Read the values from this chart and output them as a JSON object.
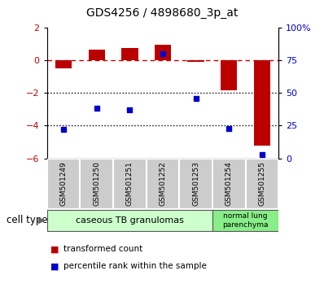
{
  "title": "GDS4256 / 4898680_3p_at",
  "samples": [
    "GSM501249",
    "GSM501250",
    "GSM501251",
    "GSM501252",
    "GSM501253",
    "GSM501254",
    "GSM501255"
  ],
  "red_values": [
    -0.52,
    0.62,
    0.72,
    0.93,
    -0.08,
    -1.82,
    -5.22
  ],
  "blue_values": [
    22,
    38,
    37,
    80,
    46,
    23,
    3
  ],
  "ylim_left": [
    -6,
    2
  ],
  "ylim_right": [
    0,
    100
  ],
  "yticks_left": [
    2,
    0,
    -2,
    -4,
    -6
  ],
  "yticks_right": [
    100,
    75,
    50,
    25,
    0
  ],
  "ytick_labels_right": [
    "100%",
    "75",
    "50",
    "25",
    "0"
  ],
  "red_color": "#bb0000",
  "blue_color": "#0000cc",
  "hline_color": "#cc0000",
  "dotline_color": "#000000",
  "bar_width": 0.5,
  "group1_label": "caseous TB granulomas",
  "group1_color": "#ccffcc",
  "group2_label": "normal lung\nparenchyma",
  "group2_color": "#88ee88",
  "cell_type_label": "cell type",
  "legend_red": "transformed count",
  "legend_blue": "percentile rank within the sample",
  "bg_color": "#ffffff",
  "plot_bg": "#ffffff",
  "sample_box_color": "#cccccc",
  "sample_box_edge": "#888888"
}
